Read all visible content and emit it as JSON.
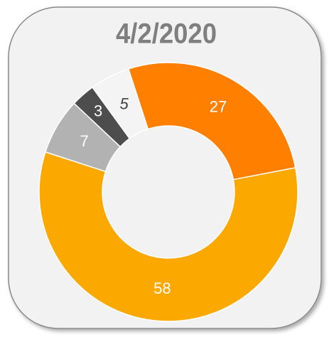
{
  "chart_data": {
    "type": "donut",
    "title": "4/2/2020",
    "values": [
      27,
      58,
      7,
      3,
      5
    ],
    "colors": [
      "#ff7f00",
      "#fba800",
      "#b2b2b2",
      "#4d4d4d",
      "#f4f4f4"
    ],
    "label_colors": [
      "#ffffff",
      "#ffffff",
      "#ffffff",
      "#ffffff",
      "#404040"
    ]
  }
}
